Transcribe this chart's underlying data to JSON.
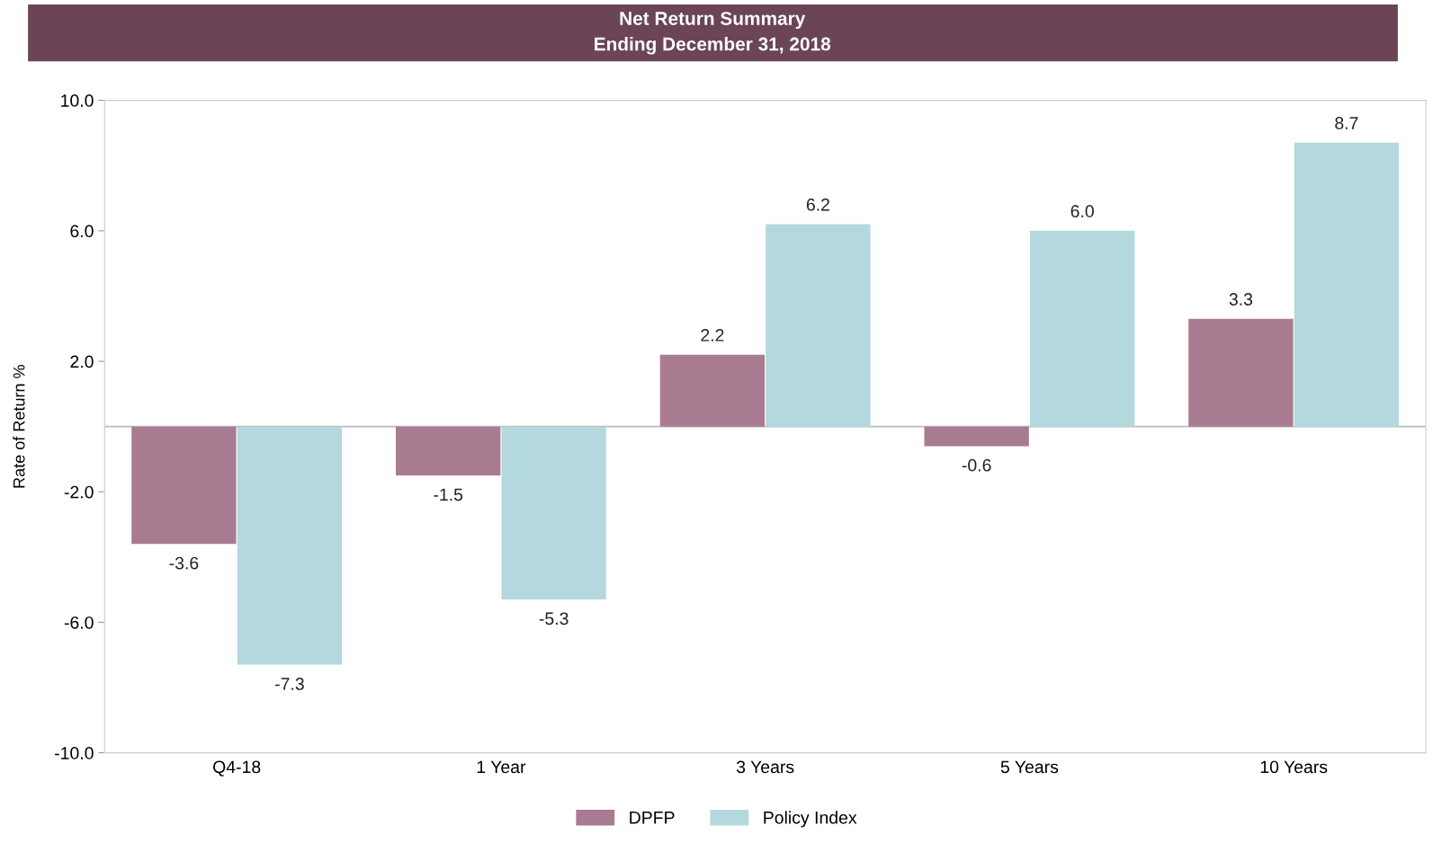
{
  "chart_data": {
    "type": "bar",
    "title": "Net Return Summary\nEnding December 31, 2018",
    "ylabel": "Rate of Return %",
    "categories": [
      "Q4-18",
      "1 Year",
      "3 Years",
      "5 Years",
      "10 Years"
    ],
    "series": [
      {
        "name": "DPFP",
        "color": "#a97b90",
        "values": [
          -3.6,
          -1.5,
          2.2,
          -0.6,
          3.3
        ],
        "value_labels": [
          "-3.6",
          "-1.5",
          "2.2",
          "-0.6",
          "3.3"
        ]
      },
      {
        "name": "Policy Index",
        "color": "#b3d8de",
        "values": [
          -7.3,
          -5.3,
          6.2,
          6.0,
          8.7
        ],
        "value_labels": [
          "-7.3",
          "-5.3",
          "6.2",
          "6.0",
          "8.7"
        ]
      }
    ],
    "ylim": [
      -10,
      10
    ],
    "yticks": [
      {
        "value": -10,
        "label": "-10.0"
      },
      {
        "value": -6,
        "label": "-6.0"
      },
      {
        "value": -2,
        "label": "-2.0"
      },
      {
        "value": 2,
        "label": "2.0"
      },
      {
        "value": 6,
        "label": "6.0"
      },
      {
        "value": 10,
        "label": "10.0"
      }
    ],
    "ref_lines": [
      {
        "axis": "y",
        "value": 0,
        "color": "#bbbbbb"
      }
    ],
    "grid": false,
    "legend": "bottom"
  }
}
